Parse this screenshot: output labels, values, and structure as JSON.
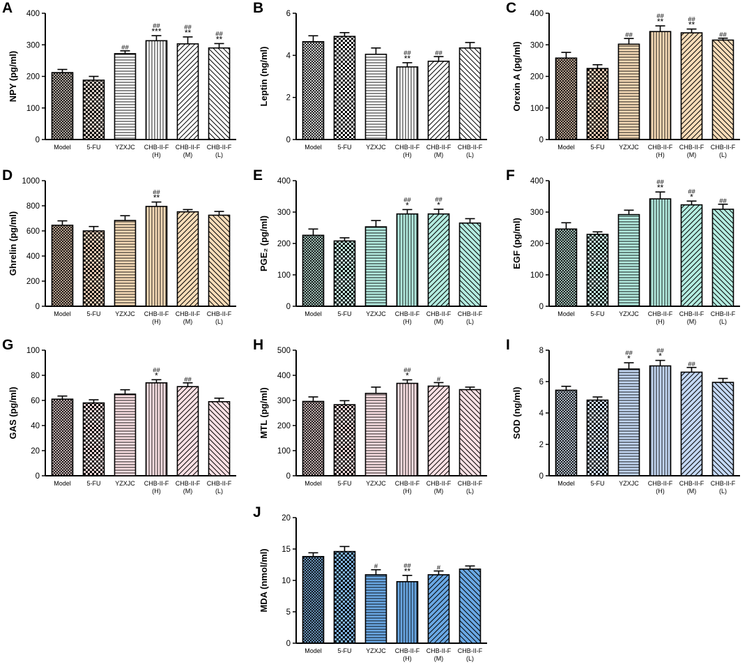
{
  "categories": [
    "Model",
    "5-FU",
    "YZXJC",
    "CHB-II-F (H)",
    "CHB-II-F (M)",
    "CHB-II-F (L)"
  ],
  "chart_data": [
    {
      "type": "bar",
      "panel": "A",
      "ylabel": "NPY (pg/ml)",
      "ylim": [
        0,
        400
      ],
      "yticks": [
        0,
        100,
        200,
        300,
        400
      ],
      "values": [
        212,
        188,
        272,
        313,
        303,
        290
      ],
      "errors": [
        10,
        12,
        9,
        16,
        22,
        14
      ],
      "annotations": [
        "",
        "",
        "##",
        "##\n***",
        "##\n**",
        "##\n**"
      ],
      "colors": [
        "#d8cdc4",
        "#d8cdc4",
        "#ffffff",
        "#ffffff",
        "#ffffff",
        "#ffffff"
      ],
      "patterns": [
        "crosshatch",
        "checker",
        "horizontal",
        "vertical",
        "diag-right",
        "diag-left"
      ]
    },
    {
      "type": "bar",
      "panel": "B",
      "ylabel": "Leptin (ng/ml)",
      "ylim": [
        0,
        6
      ],
      "yticks": [
        0,
        2,
        4,
        6
      ],
      "values": [
        4.65,
        4.9,
        4.05,
        3.45,
        3.72,
        4.35
      ],
      "errors": [
        0.28,
        0.18,
        0.3,
        0.2,
        0.22,
        0.26
      ],
      "annotations": [
        "",
        "",
        "",
        "##\n**",
        "##",
        ""
      ],
      "colors": [
        "#ffffff",
        "#ffffff",
        "#ffffff",
        "#ffffff",
        "#ffffff",
        "#ffffff"
      ],
      "patterns": [
        "crosshatch",
        "checker",
        "horizontal",
        "vertical",
        "diag-right",
        "diag-left"
      ]
    },
    {
      "type": "bar",
      "panel": "C",
      "ylabel": "Orexin A (pg/ml)",
      "ylim": [
        0,
        400
      ],
      "yticks": [
        0,
        100,
        200,
        300,
        400
      ],
      "values": [
        258,
        225,
        302,
        342,
        338,
        315
      ],
      "errors": [
        18,
        12,
        18,
        18,
        12,
        6
      ],
      "annotations": [
        "",
        "",
        "##",
        "##\n**",
        "##\n**",
        "##"
      ],
      "colors": [
        "#e2c6b0",
        "#e2c6b0",
        "#f8dcb8",
        "#f8dcb8",
        "#f8dcb8",
        "#f8dcb8"
      ],
      "patterns": [
        "crosshatch",
        "checker",
        "horizontal",
        "vertical",
        "diag-right",
        "diag-left"
      ]
    },
    {
      "type": "bar",
      "panel": "D",
      "ylabel": "Ghrelin (pg/ml)",
      "ylim": [
        0,
        1000
      ],
      "yticks": [
        0,
        200,
        400,
        600,
        800,
        1000
      ],
      "values": [
        645,
        600,
        683,
        795,
        752,
        725
      ],
      "errors": [
        35,
        35,
        38,
        35,
        18,
        30
      ],
      "annotations": [
        "",
        "",
        "",
        "##\n**",
        "",
        ""
      ],
      "colors": [
        "#e2c6b0",
        "#e2c6b0",
        "#f8dcb8",
        "#f8dcb8",
        "#f8dcb8",
        "#f8dcb8"
      ],
      "patterns": [
        "crosshatch",
        "checker",
        "horizontal",
        "vertical",
        "diag-right",
        "diag-left"
      ]
    },
    {
      "type": "bar",
      "panel": "E",
      "ylabel": "PGE₂ (pg/ml)",
      "ylim": [
        0,
        400
      ],
      "yticks": [
        0,
        100,
        200,
        300,
        400
      ],
      "values": [
        226,
        208,
        253,
        294,
        294,
        265
      ],
      "errors": [
        20,
        10,
        20,
        14,
        15,
        14
      ],
      "annotations": [
        "",
        "",
        "",
        "##\n*",
        "##\n*",
        ""
      ],
      "colors": [
        "#c2e6dc",
        "#c2e6dc",
        "#b4ece0",
        "#b4ece0",
        "#b4ece0",
        "#b4ece0"
      ],
      "patterns": [
        "crosshatch",
        "checker",
        "horizontal",
        "vertical",
        "diag-right",
        "diag-left"
      ]
    },
    {
      "type": "bar",
      "panel": "F",
      "ylabel": "EGF (pg/ml)",
      "ylim": [
        0,
        400
      ],
      "yticks": [
        0,
        100,
        200,
        300,
        400
      ],
      "values": [
        246,
        229,
        292,
        342,
        323,
        309
      ],
      "errors": [
        20,
        8,
        14,
        22,
        12,
        16
      ],
      "annotations": [
        "",
        "",
        "",
        "##\n**",
        "##\n*",
        "##"
      ],
      "colors": [
        "#c2e6dc",
        "#c2e6dc",
        "#b4ece0",
        "#b4ece0",
        "#b4ece0",
        "#b4ece0"
      ],
      "patterns": [
        "crosshatch",
        "checker",
        "horizontal",
        "vertical",
        "diag-right",
        "diag-left"
      ]
    },
    {
      "type": "bar",
      "panel": "G",
      "ylabel": "GAS (pg/ml)",
      "ylim": [
        0,
        100
      ],
      "yticks": [
        0,
        20,
        40,
        60,
        80,
        100
      ],
      "values": [
        61,
        58,
        65,
        74,
        71,
        59
      ],
      "errors": [
        2.5,
        2.5,
        3.5,
        2.5,
        3,
        2.8
      ],
      "annotations": [
        "",
        "",
        "",
        "##\n*",
        "##",
        ""
      ],
      "colors": [
        "#ecd6d6",
        "#ecd6d6",
        "#fbe0e4",
        "#fbe0e4",
        "#fbe0e4",
        "#fbe0e4"
      ],
      "patterns": [
        "crosshatch",
        "checker",
        "horizontal",
        "vertical",
        "diag-right",
        "diag-left"
      ]
    },
    {
      "type": "bar",
      "panel": "H",
      "ylabel": "MTL (pg/ml)",
      "ylim": [
        0,
        500
      ],
      "yticks": [
        0,
        100,
        200,
        300,
        400,
        500
      ],
      "values": [
        296,
        283,
        328,
        368,
        357,
        343
      ],
      "errors": [
        18,
        16,
        25,
        14,
        14,
        10
      ],
      "annotations": [
        "",
        "",
        "",
        "##\n*",
        "#",
        ""
      ],
      "colors": [
        "#ecd6d6",
        "#ecd6d6",
        "#fbe0e4",
        "#fbe0e4",
        "#fbe0e4",
        "#fbe0e4"
      ],
      "patterns": [
        "crosshatch",
        "checker",
        "horizontal",
        "vertical",
        "diag-right",
        "diag-left"
      ]
    },
    {
      "type": "bar",
      "panel": "I",
      "ylabel": "SOD (ng/ml)",
      "ylim": [
        0,
        8
      ],
      "yticks": [
        0,
        2,
        4,
        6,
        8
      ],
      "values": [
        5.45,
        4.82,
        6.8,
        7.0,
        6.6,
        5.95
      ],
      "errors": [
        0.25,
        0.2,
        0.4,
        0.35,
        0.3,
        0.25
      ],
      "annotations": [
        "",
        "",
        "##\n*",
        "##\n*",
        "##",
        ""
      ],
      "colors": [
        "#d4e2f2",
        "#d4e2f2",
        "#c4d8f4",
        "#c4d8f4",
        "#c4d8f4",
        "#c4d8f4"
      ],
      "patterns": [
        "crosshatch",
        "checker",
        "horizontal",
        "vertical",
        "diag-right",
        "diag-left"
      ]
    },
    {
      "type": "bar",
      "panel": "J",
      "ylabel": "MDA (nmol/ml)",
      "ylim": [
        0,
        20
      ],
      "yticks": [
        0,
        5,
        10,
        15,
        20
      ],
      "values": [
        13.8,
        14.6,
        10.9,
        9.8,
        10.9,
        11.8
      ],
      "errors": [
        0.6,
        0.8,
        0.8,
        1.0,
        0.6,
        0.5
      ],
      "annotations": [
        "",
        "",
        "#",
        "##\n**",
        "#",
        ""
      ],
      "colors": [
        "#7fb2e0",
        "#7fb2e0",
        "#6aa8e4",
        "#6aa8e4",
        "#6aa8e4",
        "#6aa8e4"
      ],
      "patterns": [
        "crosshatch",
        "checker",
        "horizontal",
        "vertical",
        "diag-right",
        "diag-left"
      ]
    }
  ]
}
